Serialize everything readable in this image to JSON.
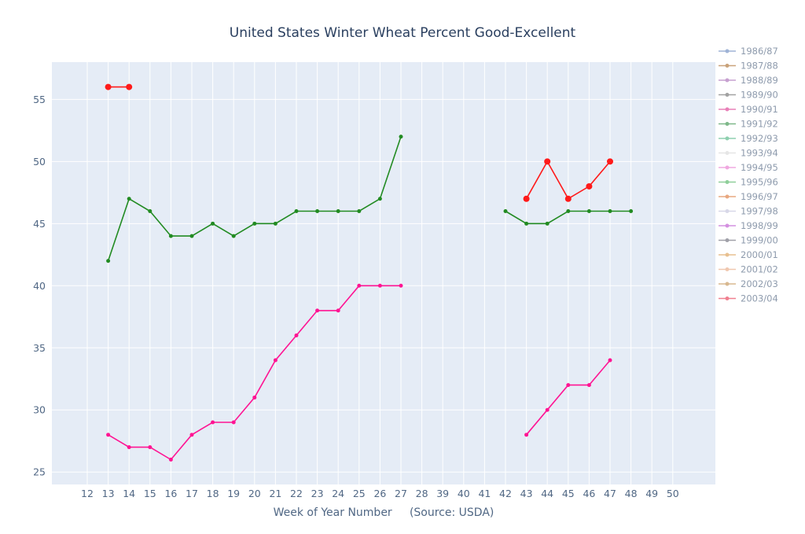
{
  "chart_data": {
    "type": "line",
    "title": "United States Winter Wheat Percent Good-Excellent",
    "xlabel": "Week of Year Number     (Source: USDA)",
    "ylabel": "",
    "x_categories": [
      "12",
      "13",
      "14",
      "15",
      "16",
      "17",
      "18",
      "19",
      "20",
      "21",
      "22",
      "23",
      "24",
      "25",
      "26",
      "27",
      "28",
      "39",
      "40",
      "41",
      "42",
      "43",
      "44",
      "45",
      "46",
      "47",
      "48",
      "49",
      "50"
    ],
    "ylim": [
      24,
      58
    ],
    "yticks": [
      25,
      30,
      35,
      40,
      45,
      50,
      55
    ],
    "grid": true,
    "legend_position": "right",
    "legend": [
      {
        "name": "1986/87",
        "color": "#9fb3d6"
      },
      {
        "name": "1987/88",
        "color": "#c9a27a"
      },
      {
        "name": "1988/89",
        "color": "#c7a0d0"
      },
      {
        "name": "1989/90",
        "color": "#a2a2a2"
      },
      {
        "name": "1990/91",
        "color": "#e880b8"
      },
      {
        "name": "1991/92",
        "color": "#7fb88a"
      },
      {
        "name": "1992/93",
        "color": "#8fd0b0"
      },
      {
        "name": "1993/94",
        "color": "#e6e6e6"
      },
      {
        "name": "1994/95",
        "color": "#f0a8e0"
      },
      {
        "name": "1995/96",
        "color": "#8fcf9a"
      },
      {
        "name": "1996/97",
        "color": "#e8a880"
      },
      {
        "name": "1997/98",
        "color": "#d8d8e8"
      },
      {
        "name": "1998/99",
        "color": "#d490e0"
      },
      {
        "name": "1999/00",
        "color": "#a0a0a8"
      },
      {
        "name": "2000/01",
        "color": "#e8c090"
      },
      {
        "name": "2001/02",
        "color": "#f0c8b0"
      },
      {
        "name": "2002/03",
        "color": "#d8b890"
      },
      {
        "name": "2003/04",
        "color": "#f08090"
      }
    ],
    "series": [
      {
        "color": "#ff1a1a",
        "marker_size": 4,
        "segments": [
          [
            {
              "x": "13",
              "y": 56
            },
            {
              "x": "14",
              "y": 56
            }
          ],
          [
            {
              "x": "43",
              "y": 47
            },
            {
              "x": "44",
              "y": 50
            },
            {
              "x": "45",
              "y": 47
            },
            {
              "x": "46",
              "y": 48
            },
            {
              "x": "47",
              "y": 50
            }
          ]
        ]
      },
      {
        "color": "#228b22",
        "marker_size": 2.5,
        "segments": [
          [
            {
              "x": "13",
              "y": 42
            },
            {
              "x": "14",
              "y": 47
            },
            {
              "x": "15",
              "y": 46
            },
            {
              "x": "16",
              "y": 44
            },
            {
              "x": "17",
              "y": 44
            },
            {
              "x": "18",
              "y": 45
            },
            {
              "x": "19",
              "y": 44
            },
            {
              "x": "20",
              "y": 45
            },
            {
              "x": "21",
              "y": 45
            },
            {
              "x": "22",
              "y": 46
            },
            {
              "x": "23",
              "y": 46
            },
            {
              "x": "24",
              "y": 46
            },
            {
              "x": "25",
              "y": 46
            },
            {
              "x": "26",
              "y": 47
            },
            {
              "x": "27",
              "y": 52
            }
          ],
          [
            {
              "x": "42",
              "y": 46
            },
            {
              "x": "43",
              "y": 45
            },
            {
              "x": "44",
              "y": 45
            },
            {
              "x": "45",
              "y": 46
            },
            {
              "x": "46",
              "y": 46
            },
            {
              "x": "47",
              "y": 46
            },
            {
              "x": "48",
              "y": 46
            }
          ]
        ]
      },
      {
        "color": "#ff1493",
        "marker_size": 2.5,
        "segments": [
          [
            {
              "x": "13",
              "y": 28
            },
            {
              "x": "14",
              "y": 27
            },
            {
              "x": "15",
              "y": 27
            },
            {
              "x": "16",
              "y": 26
            },
            {
              "x": "17",
              "y": 28
            },
            {
              "x": "18",
              "y": 29
            },
            {
              "x": "19",
              "y": 29
            },
            {
              "x": "20",
              "y": 31
            },
            {
              "x": "21",
              "y": 34
            },
            {
              "x": "22",
              "y": 36
            },
            {
              "x": "23",
              "y": 38
            },
            {
              "x": "24",
              "y": 38
            },
            {
              "x": "25",
              "y": 40
            },
            {
              "x": "26",
              "y": 40
            },
            {
              "x": "27",
              "y": 40
            }
          ],
          [
            {
              "x": "43",
              "y": 28
            },
            {
              "x": "44",
              "y": 30
            },
            {
              "x": "45",
              "y": 32
            },
            {
              "x": "46",
              "y": 32
            },
            {
              "x": "47",
              "y": 34
            }
          ]
        ]
      }
    ]
  }
}
